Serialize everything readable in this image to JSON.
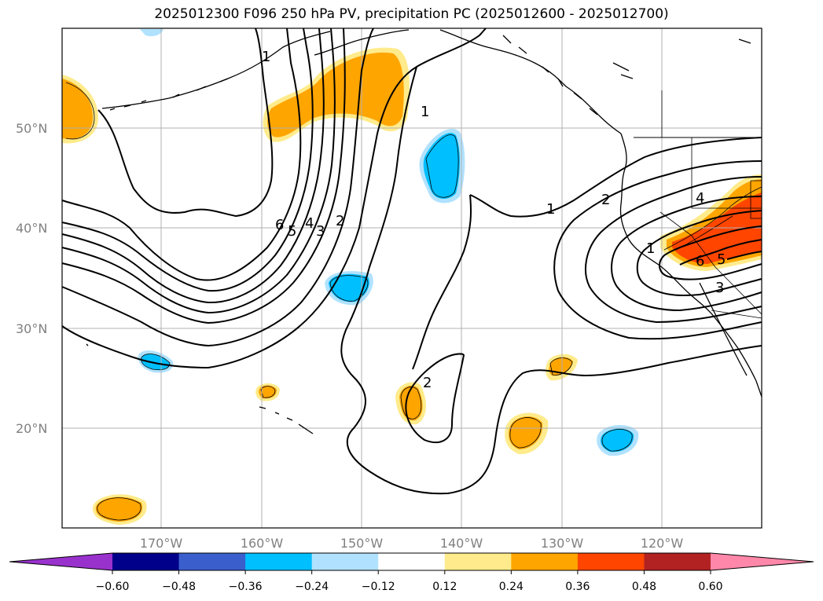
{
  "title": "2025012300 F096 250 hPa PV, precipitation PC (2025012600 - 2025012700)",
  "lat_labels": [
    "50°N",
    "40°N",
    "30°N",
    "20°N"
  ],
  "lon_labels": [
    "170°W",
    "160°W",
    "150°W",
    "140°W",
    "130°W",
    "120°W"
  ],
  "colorbar": {
    "ticks": [
      "−0.60",
      "−0.48",
      "−0.36",
      "−0.24",
      "−0.12",
      "0.12",
      "0.24",
      "0.36",
      "0.48",
      "0.60"
    ],
    "colors": [
      "#9932cc",
      "#00008b",
      "#3a5fcd",
      "#00bfff",
      "#b0e2ff",
      "#ffffff",
      "#ffeb8b",
      "#ffa500",
      "#ff4500",
      "#b22222",
      "#ff88aa"
    ]
  },
  "contour_labels": [
    "1",
    "1",
    "6",
    "5",
    "4",
    "3",
    "2",
    "1",
    "2",
    "4",
    "1",
    "6",
    "5",
    "3",
    "2"
  ],
  "colors": {
    "ocean_neg": "#00bfff",
    "neg_light": "#b0e2ff",
    "pos_light": "#ffeb8b",
    "pos": "#ffa500",
    "pos_strong": "#ff4500",
    "grid": "#b0b0b0"
  }
}
